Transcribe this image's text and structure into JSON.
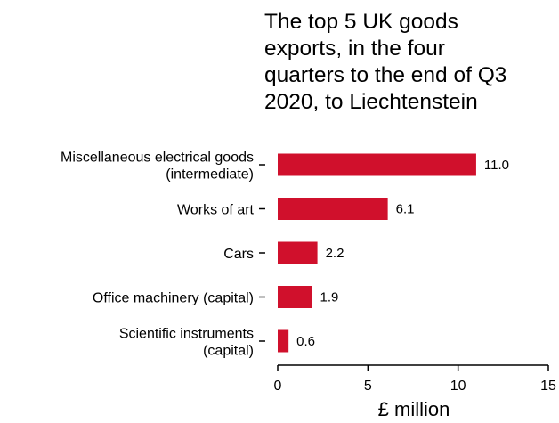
{
  "chart_data": {
    "type": "bar",
    "orientation": "horizontal",
    "title": "The top 5 UK goods exports, in the four quarters to the end of Q3 2020, to Liechtenstein",
    "title_lines": [
      "The top 5 UK goods",
      "exports, in the four",
      "quarters to the end of Q3",
      "2020, to Liechtenstein"
    ],
    "categories": [
      [
        "Miscellaneous electrical goods",
        "(intermediate)"
      ],
      [
        "Works of art"
      ],
      [
        "Cars"
      ],
      [
        "Office machinery (capital)"
      ],
      [
        "Scientific instruments",
        "(capital)"
      ]
    ],
    "values": [
      11.0,
      6.1,
      2.2,
      1.9,
      0.6
    ],
    "value_labels": [
      "11.0",
      "6.1",
      "2.2",
      "1.9",
      "0.6"
    ],
    "xlabel": "£ million",
    "ylabel": "",
    "xlim": [
      0,
      15
    ],
    "xticks": [
      0,
      5,
      10,
      15
    ],
    "grid": false,
    "bar_color": "#d0102c"
  }
}
